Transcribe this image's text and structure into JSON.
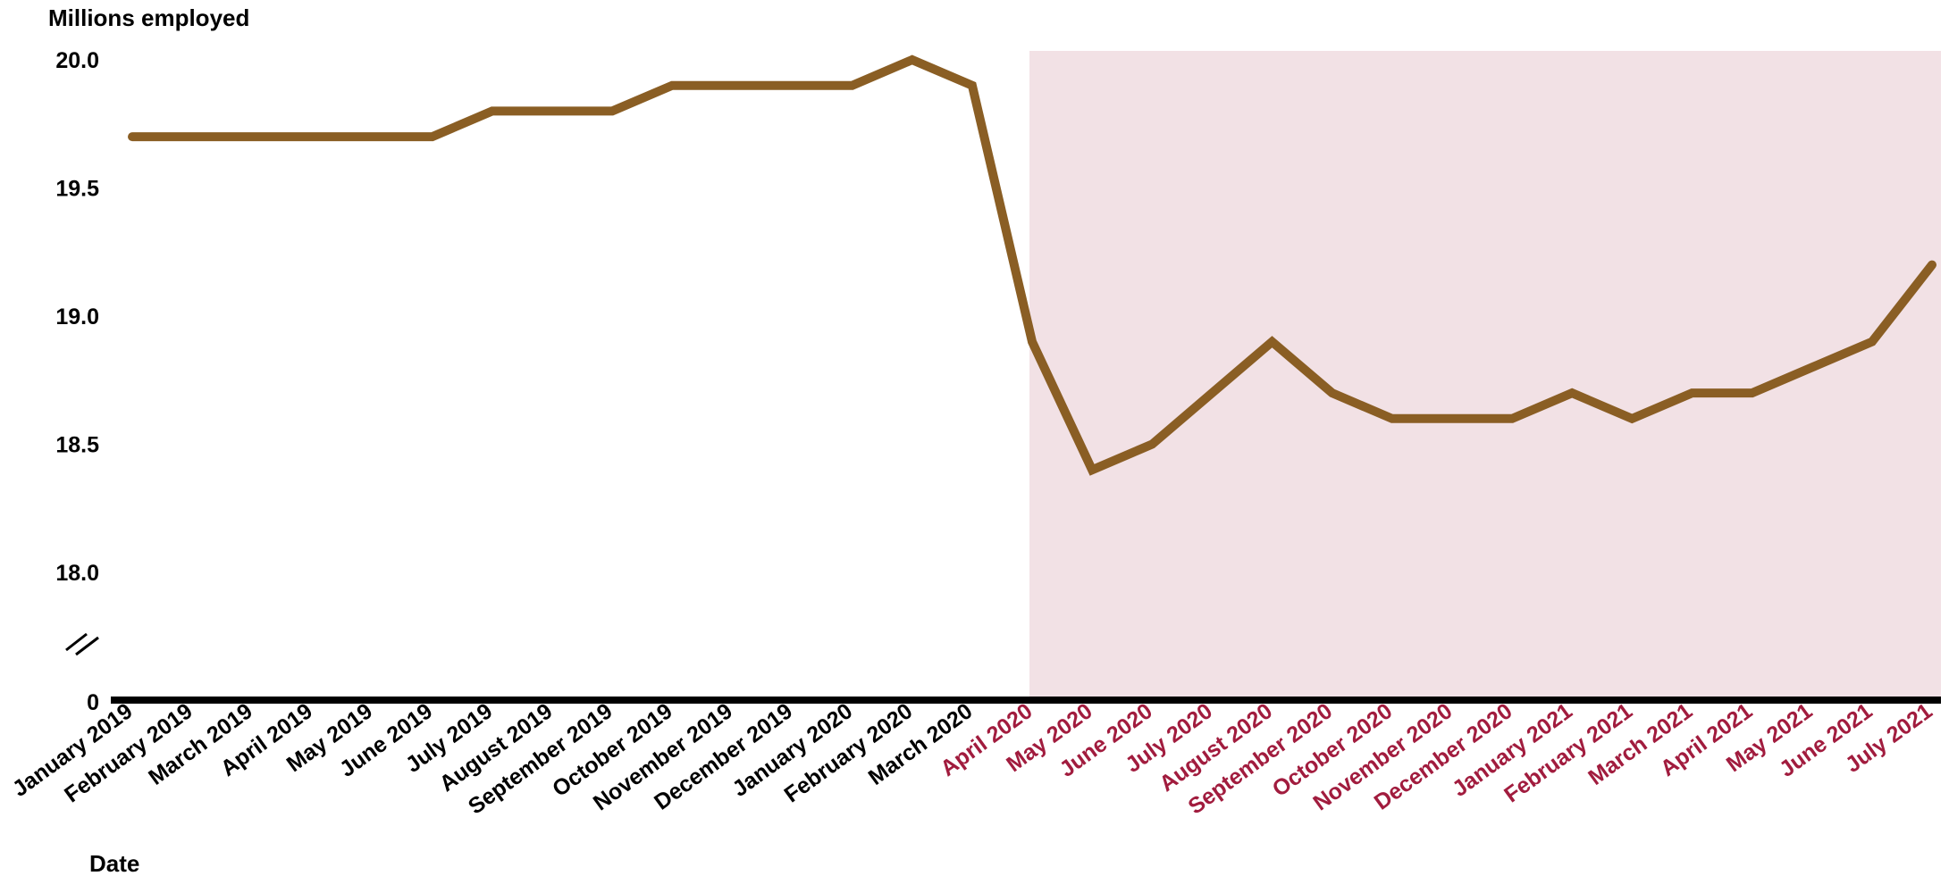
{
  "chart_data": {
    "type": "line",
    "title": "",
    "ylabel": "Millions employed",
    "xlabel": "Date",
    "ylim": [
      18.0,
      20.0
    ],
    "y_ticks": [
      "20.0",
      "19.5",
      "19.0",
      "18.5",
      "18.0"
    ],
    "y_zero_label": "0",
    "axis_break": true,
    "grid": false,
    "categories": [
      "January 2019",
      "February 2019",
      "March 2019",
      "April 2019",
      "May 2019",
      "June 2019",
      "July 2019",
      "August 2019",
      "September  2019",
      "October 2019",
      "November 2019",
      "December 2019",
      "January 2020",
      "February 2020",
      "March 2020",
      "April 2020",
      "May 2020",
      "June 2020",
      "July 2020",
      "August 2020",
      "September 2020",
      "October 2020",
      "November 2020",
      "December 2020",
      "January 2021",
      "February 2021",
      "March 2021",
      "April 2021",
      "May 2021",
      "June 2021",
      "July 2021"
    ],
    "series": [
      {
        "values": [
          19.7,
          19.7,
          19.7,
          19.7,
          19.7,
          19.7,
          19.8,
          19.8,
          19.8,
          19.9,
          19.9,
          19.9,
          19.9,
          20.0,
          19.9,
          18.9,
          18.4,
          18.5,
          18.7,
          18.9,
          18.7,
          18.6,
          18.6,
          18.6,
          18.7,
          18.6,
          18.7,
          18.7,
          18.8,
          18.9,
          19.2
        ]
      }
    ],
    "highlight": {
      "from": "April 2020",
      "to": "July 2021"
    },
    "colors": {
      "line": "#8a5e24",
      "shade": "#f2e1e5",
      "highlight_label": "#a11c3e",
      "normal_label": "#000000",
      "axis": "#000000"
    }
  }
}
